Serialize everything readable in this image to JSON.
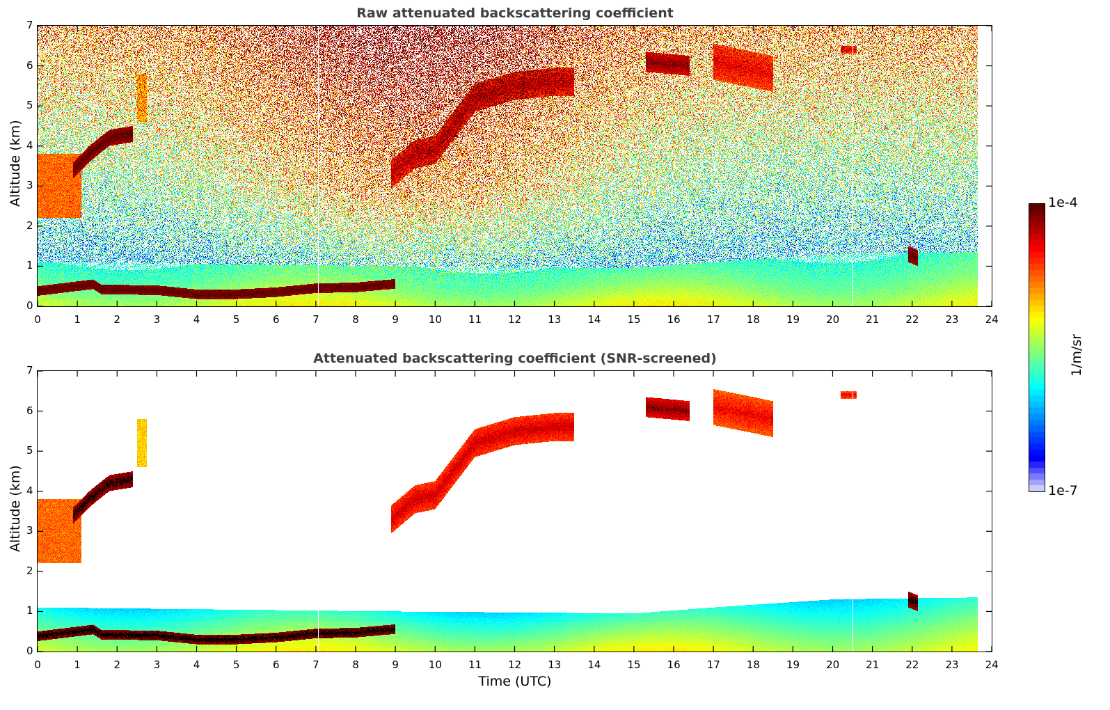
{
  "chart_data": [
    {
      "type": "heatmap",
      "id": "raw",
      "title": "Raw attenuated backscattering coefficient",
      "xlabel": "",
      "ylabel": "Altitude (km)",
      "xlim": [
        0,
        24
      ],
      "ylim": [
        0,
        7
      ],
      "x_ticks": [
        "0",
        "1",
        "2",
        "3",
        "4",
        "5",
        "6",
        "7",
        "8",
        "9",
        "10",
        "11",
        "12",
        "13",
        "14",
        "15",
        "16",
        "17",
        "18",
        "19",
        "20",
        "21",
        "22",
        "23",
        "24"
      ],
      "y_ticks": [
        "0",
        "1",
        "2",
        "3",
        "4",
        "5",
        "6",
        "7"
      ],
      "data_end_time": 23.65,
      "gaps_time": [
        7.05,
        20.5
      ],
      "screened": false,
      "features": [
        {
          "name": "boundary-layer",
          "t0": 0,
          "t1": 23.65,
          "alt_top": [
            [
              0,
              1.1
            ],
            [
              9,
              1.0
            ],
            [
              15,
              0.95
            ],
            [
              17,
              1.1
            ],
            [
              20,
              1.3
            ],
            [
              23.65,
              1.35
            ]
          ],
          "log_value": -5.9
        },
        {
          "name": "aerosol-layer",
          "t0": 0,
          "t1": 9.0,
          "alt": [
            [
              0,
              0.38
            ],
            [
              1.4,
              0.55
            ],
            [
              1.6,
              0.42
            ],
            [
              3,
              0.4
            ],
            [
              4,
              0.3
            ],
            [
              5,
              0.3
            ],
            [
              6,
              0.35
            ],
            [
              7,
              0.45
            ],
            [
              8,
              0.47
            ],
            [
              8.9,
              0.55
            ]
          ],
          "thickness": 0.12,
          "log_value": -4.05
        },
        {
          "name": "low-cloud-0h",
          "t0": 0,
          "t1": 1.1,
          "alt_range": [
            2.2,
            3.8
          ],
          "log_value": -4.6
        },
        {
          "name": "cloud-1-2h",
          "t0": 0.9,
          "t1": 2.4,
          "alt": [
            [
              0.9,
              3.4
            ],
            [
              1.3,
              3.8
            ],
            [
              1.8,
              4.2
            ],
            [
              2.4,
              4.3
            ]
          ],
          "thickness": 0.2,
          "log_value": -4.1
        },
        {
          "name": "cirrus-2.6h",
          "t0": 2.5,
          "t1": 2.75,
          "alt_range": [
            4.6,
            5.8
          ],
          "log_value": -4.9
        },
        {
          "name": "rising-layer",
          "t0": 8.9,
          "t1": 13.5,
          "alt": [
            [
              8.9,
              3.3
            ],
            [
              9.5,
              3.8
            ],
            [
              10,
              3.9
            ],
            [
              11,
              5.2
            ],
            [
              12,
              5.5
            ],
            [
              13,
              5.6
            ],
            [
              13.5,
              5.6
            ]
          ],
          "thickness": 0.35,
          "log_value": -4.5
        },
        {
          "name": "cloud-15-16h",
          "t0": 15.3,
          "t1": 16.4,
          "alt": [
            [
              15.3,
              6.1
            ],
            [
              16.4,
              6.0
            ]
          ],
          "thickness": 0.25,
          "log_value": -4.3
        },
        {
          "name": "cloud-17-18h",
          "t0": 17.0,
          "t1": 18.5,
          "alt": [
            [
              17,
              6.1
            ],
            [
              18.5,
              5.8
            ]
          ],
          "thickness": 0.45,
          "log_value": -4.6
        },
        {
          "name": "cloud-20.5h",
          "t0": 20.2,
          "t1": 20.6,
          "alt": [
            [
              20.2,
              6.4
            ],
            [
              20.6,
              6.4
            ]
          ],
          "thickness": 0.1,
          "log_value": -4.6
        },
        {
          "name": "cloud-22h",
          "t0": 21.9,
          "t1": 22.15,
          "alt": [
            [
              21.9,
              1.3
            ],
            [
              22.15,
              1.2
            ]
          ],
          "thickness": 0.2,
          "log_value": -4.1
        }
      ]
    },
    {
      "type": "heatmap",
      "id": "screened",
      "title": "Attenuated backscattering coefficient (SNR-screened)",
      "xlabel": "Time (UTC)",
      "ylabel": "Altitude (km)",
      "xlim": [
        0,
        24
      ],
      "ylim": [
        0,
        7
      ],
      "x_ticks": [
        "0",
        "1",
        "2",
        "3",
        "4",
        "5",
        "6",
        "7",
        "8",
        "9",
        "10",
        "11",
        "12",
        "13",
        "14",
        "15",
        "16",
        "17",
        "18",
        "19",
        "20",
        "21",
        "22",
        "23",
        "24"
      ],
      "y_ticks": [
        "0",
        "1",
        "2",
        "3",
        "4",
        "5",
        "6",
        "7"
      ],
      "data_end_time": 23.65,
      "gaps_time": [
        7.05,
        20.5
      ],
      "screened": true
    }
  ],
  "colorbar": {
    "label": "1/m/sr",
    "max_label": "1e-4",
    "min_label": "1e-7",
    "scale": "log",
    "range": [
      1e-07,
      0.0001
    ],
    "colormap": "jet",
    "saturated_color": "#000000"
  }
}
